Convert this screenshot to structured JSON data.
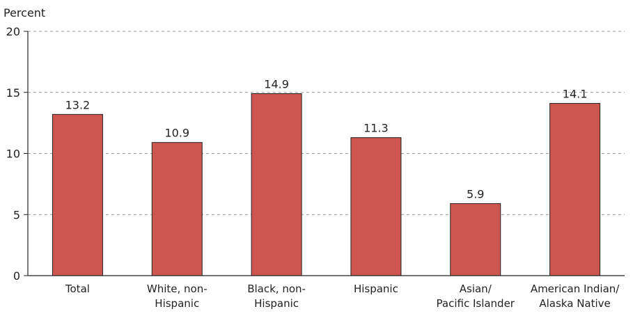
{
  "chart_data": {
    "type": "bar",
    "ylabel": "Percent",
    "ylim": [
      0,
      20
    ],
    "yticks": [
      "0",
      "5",
      "10",
      "15",
      "20"
    ],
    "categories": [
      [
        "Total"
      ],
      [
        "White, non-",
        "Hispanic"
      ],
      [
        "Black, non-",
        "Hispanic"
      ],
      [
        "Hispanic"
      ],
      [
        "Asian/",
        "Pacific Islander"
      ],
      [
        "American Indian/",
        "Alaska Native"
      ]
    ],
    "values": [
      13.2,
      10.9,
      14.9,
      11.3,
      5.9,
      14.1
    ],
    "value_labels": [
      "13.2",
      "10.9",
      "14.9",
      "11.3",
      "5.9",
      "14.1"
    ],
    "grid": true,
    "bar_color": "#cd5650",
    "bar_edge_color": "#222222"
  }
}
